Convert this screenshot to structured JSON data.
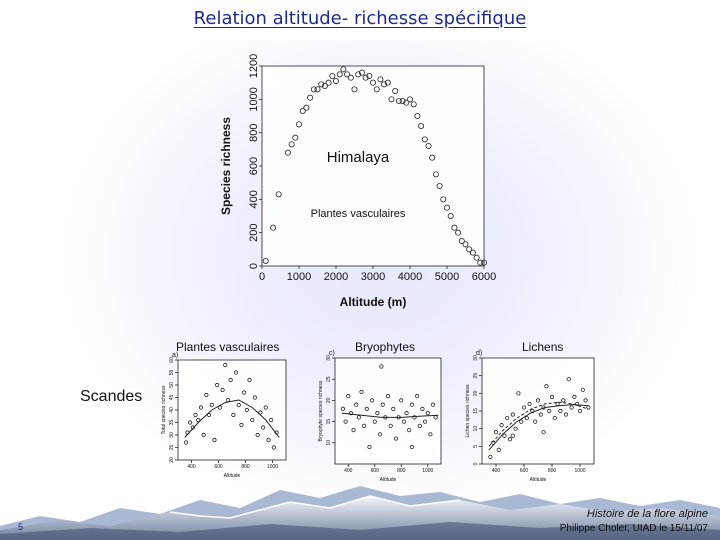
{
  "slide": {
    "title": "Relation altitude- richesse spécifique",
    "footer_line1": "Histoire de la flore alpine",
    "footer_line2": "Philippe Choler, UIAD le 15/11/07",
    "page_number": "5",
    "region_label_top": "Himalaya",
    "region_label_bottom": "Scandes",
    "accent_color": "#1e2a8c"
  },
  "chart_data": [
    {
      "type": "scatter",
      "title": "Himalaya",
      "subtitle": "Plantes vasculaires",
      "xlabel": "Altitude (m)",
      "ylabel": "Species richness",
      "xlim": [
        0,
        6000
      ],
      "ylim": [
        0,
        1200
      ],
      "xticks": [
        "0",
        "1000",
        "2000",
        "3000",
        "4000",
        "5000",
        "6000"
      ],
      "yticks": [
        "0",
        "200",
        "400",
        "600",
        "800",
        "1000",
        "1200"
      ],
      "points": [
        [
          100,
          30
        ],
        [
          300,
          230
        ],
        [
          450,
          430
        ],
        [
          700,
          680
        ],
        [
          800,
          730
        ],
        [
          900,
          770
        ],
        [
          1000,
          850
        ],
        [
          1100,
          930
        ],
        [
          1200,
          950
        ],
        [
          1300,
          1010
        ],
        [
          1400,
          1060
        ],
        [
          1500,
          1060
        ],
        [
          1600,
          1090
        ],
        [
          1700,
          1080
        ],
        [
          1800,
          1100
        ],
        [
          1900,
          1140
        ],
        [
          2000,
          1110
        ],
        [
          2100,
          1150
        ],
        [
          2200,
          1180
        ],
        [
          2300,
          1150
        ],
        [
          2400,
          1130
        ],
        [
          2500,
          1060
        ],
        [
          2600,
          1150
        ],
        [
          2700,
          1160
        ],
        [
          2800,
          1130
        ],
        [
          2900,
          1140
        ],
        [
          3000,
          1100
        ],
        [
          3100,
          1060
        ],
        [
          3200,
          1120
        ],
        [
          3300,
          1090
        ],
        [
          3400,
          1100
        ],
        [
          3500,
          1000
        ],
        [
          3600,
          1050
        ],
        [
          3700,
          990
        ],
        [
          3800,
          990
        ],
        [
          3900,
          980
        ],
        [
          4000,
          1000
        ],
        [
          4100,
          970
        ],
        [
          4200,
          900
        ],
        [
          4300,
          840
        ],
        [
          4400,
          760
        ],
        [
          4500,
          720
        ],
        [
          4600,
          650
        ],
        [
          4700,
          550
        ],
        [
          4800,
          480
        ],
        [
          4900,
          400
        ],
        [
          5000,
          350
        ],
        [
          5100,
          300
        ],
        [
          5200,
          230
        ],
        [
          5300,
          200
        ],
        [
          5400,
          150
        ],
        [
          5500,
          130
        ],
        [
          5600,
          100
        ],
        [
          5700,
          80
        ],
        [
          5800,
          50
        ],
        [
          5900,
          20
        ],
        [
          6000,
          20
        ]
      ]
    },
    {
      "type": "scatter",
      "title": "Plantes vasculaires",
      "panel_letter": "a)",
      "xlabel": "Altitude",
      "ylabel": "Total species richness",
      "xlim": [
        300,
        1100
      ],
      "ylim": [
        20,
        60
      ],
      "xticks": [
        "400",
        "600",
        "800",
        "1000"
      ],
      "yticks": [
        "20",
        "25",
        "30",
        "35",
        "40",
        "45",
        "50",
        "55",
        "60"
      ],
      "points": [
        [
          360,
          27
        ],
        [
          370,
          31
        ],
        [
          390,
          35
        ],
        [
          410,
          33
        ],
        [
          430,
          38
        ],
        [
          450,
          36
        ],
        [
          470,
          41
        ],
        [
          490,
          30
        ],
        [
          510,
          46
        ],
        [
          530,
          38
        ],
        [
          550,
          42
        ],
        [
          570,
          28
        ],
        [
          590,
          50
        ],
        [
          610,
          41
        ],
        [
          630,
          48
        ],
        [
          650,
          58
        ],
        [
          670,
          44
        ],
        [
          690,
          52
        ],
        [
          710,
          38
        ],
        [
          730,
          55
        ],
        [
          750,
          42
        ],
        [
          770,
          34
        ],
        [
          790,
          47
        ],
        [
          810,
          40
        ],
        [
          830,
          52
        ],
        [
          850,
          36
        ],
        [
          870,
          45
        ],
        [
          890,
          30
        ],
        [
          910,
          39
        ],
        [
          930,
          33
        ],
        [
          950,
          41
        ],
        [
          970,
          28
        ],
        [
          990,
          36
        ],
        [
          1010,
          25
        ],
        [
          1030,
          31
        ]
      ],
      "fit_curve": [
        [
          350,
          29
        ],
        [
          450,
          35
        ],
        [
          550,
          40
        ],
        [
          650,
          43
        ],
        [
          750,
          44
        ],
        [
          850,
          41
        ],
        [
          950,
          36
        ],
        [
          1050,
          29
        ]
      ]
    },
    {
      "type": "scatter",
      "title": "Bryophytes",
      "panel_letter": "c)",
      "xlabel": "Altitude",
      "ylabel": "Bryophyte species richness",
      "xlim": [
        300,
        1100
      ],
      "ylim": [
        5,
        30
      ],
      "xticks": [
        "400",
        "600",
        "800",
        "1000"
      ],
      "yticks": [
        "10",
        "15",
        "20",
        "25",
        "30"
      ],
      "points": [
        [
          360,
          18
        ],
        [
          380,
          15
        ],
        [
          400,
          21
        ],
        [
          420,
          17
        ],
        [
          440,
          13
        ],
        [
          460,
          19
        ],
        [
          480,
          16
        ],
        [
          500,
          22
        ],
        [
          520,
          14
        ],
        [
          540,
          18
        ],
        [
          560,
          9
        ],
        [
          580,
          20
        ],
        [
          600,
          15
        ],
        [
          620,
          17
        ],
        [
          640,
          12
        ],
        [
          660,
          19
        ],
        [
          680,
          16
        ],
        [
          700,
          21
        ],
        [
          720,
          14
        ],
        [
          740,
          18
        ],
        [
          760,
          11
        ],
        [
          780,
          16
        ],
        [
          800,
          20
        ],
        [
          820,
          15
        ],
        [
          840,
          17
        ],
        [
          860,
          13
        ],
        [
          880,
          19
        ],
        [
          900,
          16
        ],
        [
          920,
          21
        ],
        [
          940,
          14
        ],
        [
          960,
          18
        ],
        [
          980,
          15
        ],
        [
          1000,
          17
        ],
        [
          1020,
          12
        ],
        [
          1040,
          19
        ],
        [
          1060,
          16
        ],
        [
          650,
          28
        ],
        [
          880,
          9
        ]
      ],
      "fit_curve": [
        [
          350,
          17
        ],
        [
          500,
          16.5
        ],
        [
          650,
          16
        ],
        [
          800,
          16
        ],
        [
          950,
          16.3
        ],
        [
          1080,
          16.5
        ]
      ]
    },
    {
      "type": "scatter",
      "title": "Lichens",
      "panel_letter": "d)",
      "xlabel": "Altitude",
      "ylabel": "Lichen species richness",
      "xlim": [
        300,
        1100
      ],
      "ylim": [
        0,
        30
      ],
      "xticks": [
        "400",
        "600",
        "800",
        "1000"
      ],
      "yticks": [
        "0",
        "5",
        "10",
        "15",
        "20",
        "25",
        "30"
      ],
      "points": [
        [
          360,
          2
        ],
        [
          380,
          6
        ],
        [
          400,
          9
        ],
        [
          420,
          4
        ],
        [
          440,
          11
        ],
        [
          460,
          8
        ],
        [
          480,
          13
        ],
        [
          500,
          7
        ],
        [
          520,
          14
        ],
        [
          540,
          10
        ],
        [
          560,
          20
        ],
        [
          580,
          12
        ],
        [
          600,
          16
        ],
        [
          620,
          13
        ],
        [
          640,
          17
        ],
        [
          660,
          15
        ],
        [
          680,
          12
        ],
        [
          700,
          18
        ],
        [
          720,
          14
        ],
        [
          740,
          16
        ],
        [
          760,
          22
        ],
        [
          780,
          15
        ],
        [
          800,
          19
        ],
        [
          820,
          13
        ],
        [
          840,
          17
        ],
        [
          860,
          15
        ],
        [
          880,
          18
        ],
        [
          900,
          14
        ],
        [
          920,
          24
        ],
        [
          940,
          16
        ],
        [
          960,
          19
        ],
        [
          980,
          17
        ],
        [
          1000,
          15
        ],
        [
          1020,
          21
        ],
        [
          1040,
          18
        ],
        [
          1060,
          16
        ],
        [
          520,
          8
        ],
        [
          740,
          9
        ]
      ],
      "fit_curve": [
        [
          350,
          4
        ],
        [
          450,
          8.5
        ],
        [
          550,
          12
        ],
        [
          650,
          14.5
        ],
        [
          750,
          16
        ],
        [
          850,
          16.5
        ],
        [
          950,
          16.8
        ],
        [
          1060,
          16.5
        ]
      ],
      "fit_curve_2": [
        [
          350,
          5
        ],
        [
          450,
          9.5
        ],
        [
          550,
          13
        ],
        [
          650,
          15.5
        ],
        [
          750,
          17
        ],
        [
          850,
          17.5
        ],
        [
          950,
          17
        ],
        [
          1060,
          15.5
        ]
      ]
    }
  ]
}
